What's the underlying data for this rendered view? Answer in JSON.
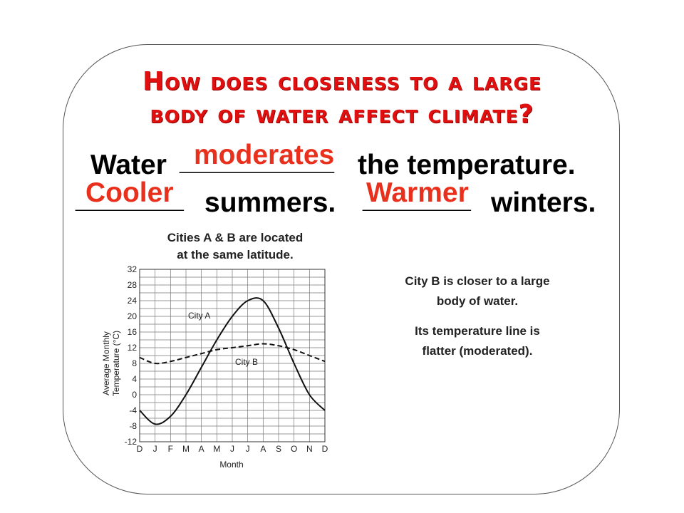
{
  "title": {
    "line1": "How does closeness to a large",
    "line2": "body of water affect climate?"
  },
  "sentence1": {
    "lead": "Water",
    "blank": "__________",
    "tail": "the temperature.",
    "answer": "moderates"
  },
  "sentence2": {
    "blank1": "_______",
    "word1": "summers.",
    "blank2": "_______",
    "word2": "winters.",
    "answer1": "Cooler",
    "answer2": "Warmer"
  },
  "chart_caption": {
    "line1": "Cities A & B are located",
    "line2": "at the same latitude."
  },
  "notes": {
    "line1": "City  B is closer to a large",
    "line2": "body of water.",
    "line3": "Its temperature line is",
    "line4": "flatter (moderated)."
  },
  "colors": {
    "title": "#e01010",
    "answer": "#e8301c",
    "text": "#000000"
  },
  "chart_data": {
    "type": "line",
    "xlabel": "Month",
    "ylabel_line1": "Average Monthly",
    "ylabel_line2": "Temperature (°C)",
    "categories": [
      "D",
      "J",
      "F",
      "M",
      "A",
      "M",
      "J",
      "J",
      "A",
      "S",
      "O",
      "N",
      "D"
    ],
    "ylim": [
      -12,
      32
    ],
    "yticks": [
      32,
      28,
      24,
      20,
      16,
      12,
      8,
      4,
      0,
      -4,
      -8,
      -12
    ],
    "grid": true,
    "series": [
      {
        "name": "City A",
        "style": "solid",
        "values": [
          -4,
          -7.5,
          -5.5,
          0,
          7,
          14,
          20,
          24,
          24,
          17,
          8,
          0,
          -4
        ]
      },
      {
        "name": "City B",
        "style": "dashed",
        "values": [
          9.5,
          8,
          8.5,
          9.5,
          10.5,
          11.5,
          12,
          12.5,
          13,
          12.5,
          11.5,
          10,
          8.5
        ]
      }
    ]
  }
}
